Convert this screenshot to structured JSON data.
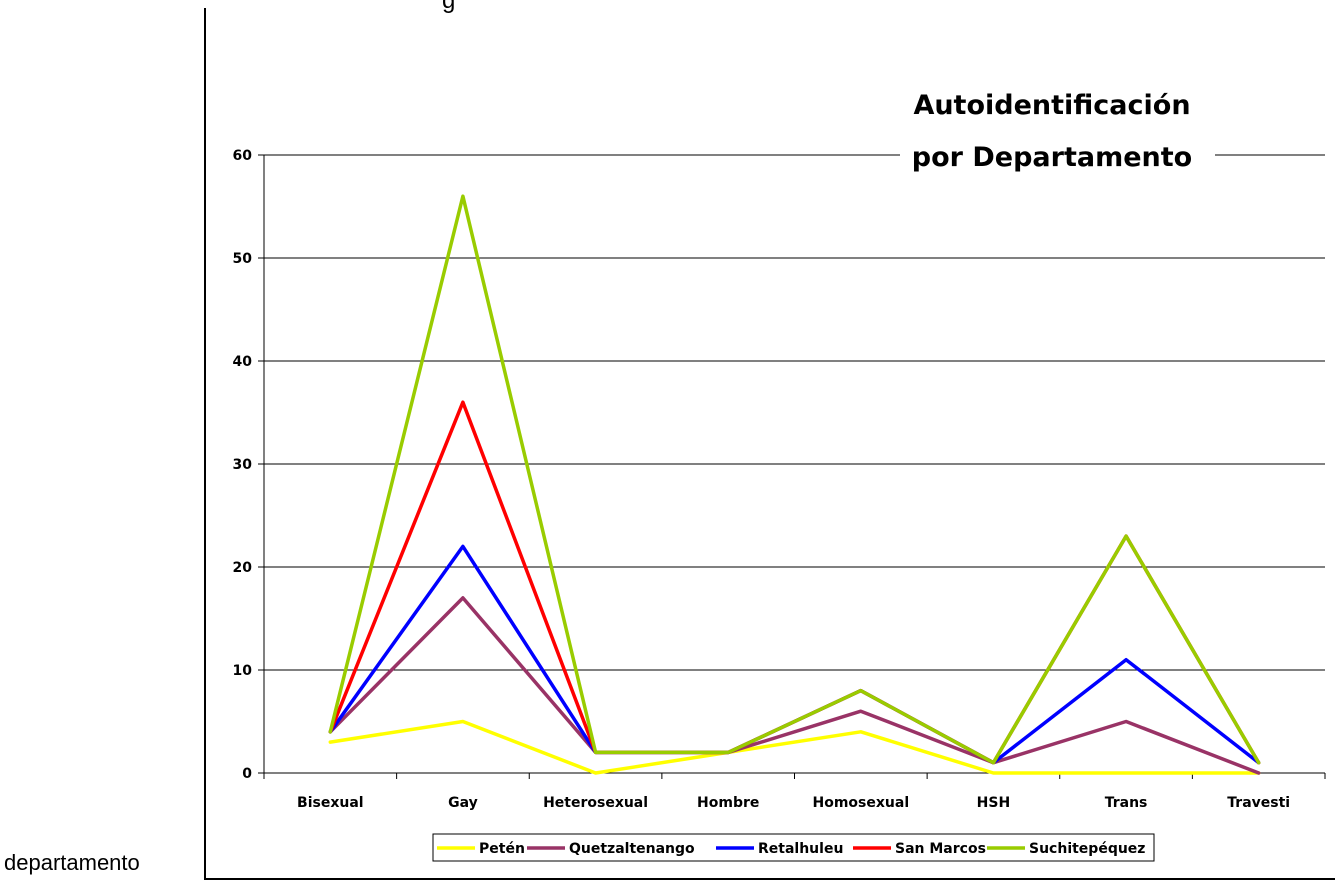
{
  "outer_label": "departamento",
  "top_fragment": "g",
  "chart_data": {
    "type": "line",
    "title_lines": [
      "Autoidentificación",
      "por Departamento"
    ],
    "categories": [
      "Bisexual",
      "Gay",
      "Heterosexual",
      "Hombre",
      "Homosexual",
      "HSH",
      "Trans",
      "Travesti"
    ],
    "ylim": [
      0,
      60
    ],
    "yticks": [
      0,
      10,
      20,
      30,
      40,
      50,
      60
    ],
    "grid": true,
    "legend_position": "bottom",
    "series": [
      {
        "name": "Petén",
        "color": "#ffff00",
        "values": [
          3,
          5,
          0,
          2,
          4,
          0,
          0,
          0
        ]
      },
      {
        "name": "Quetzaltenango",
        "color": "#993366",
        "values": [
          4,
          17,
          2,
          2,
          6,
          1,
          5,
          0
        ]
      },
      {
        "name": "Retalhuleu",
        "color": "#0000ff",
        "values": [
          4,
          22,
          2,
          2,
          8,
          1,
          11,
          1
        ]
      },
      {
        "name": "San Marcos",
        "color": "#ff0000",
        "values": [
          4,
          36,
          2,
          2,
          8,
          1,
          23,
          1
        ]
      },
      {
        "name": "Suchitepéquez",
        "color": "#99cc00",
        "values": [
          4,
          56,
          2,
          2,
          8,
          1,
          23,
          1
        ]
      }
    ]
  }
}
